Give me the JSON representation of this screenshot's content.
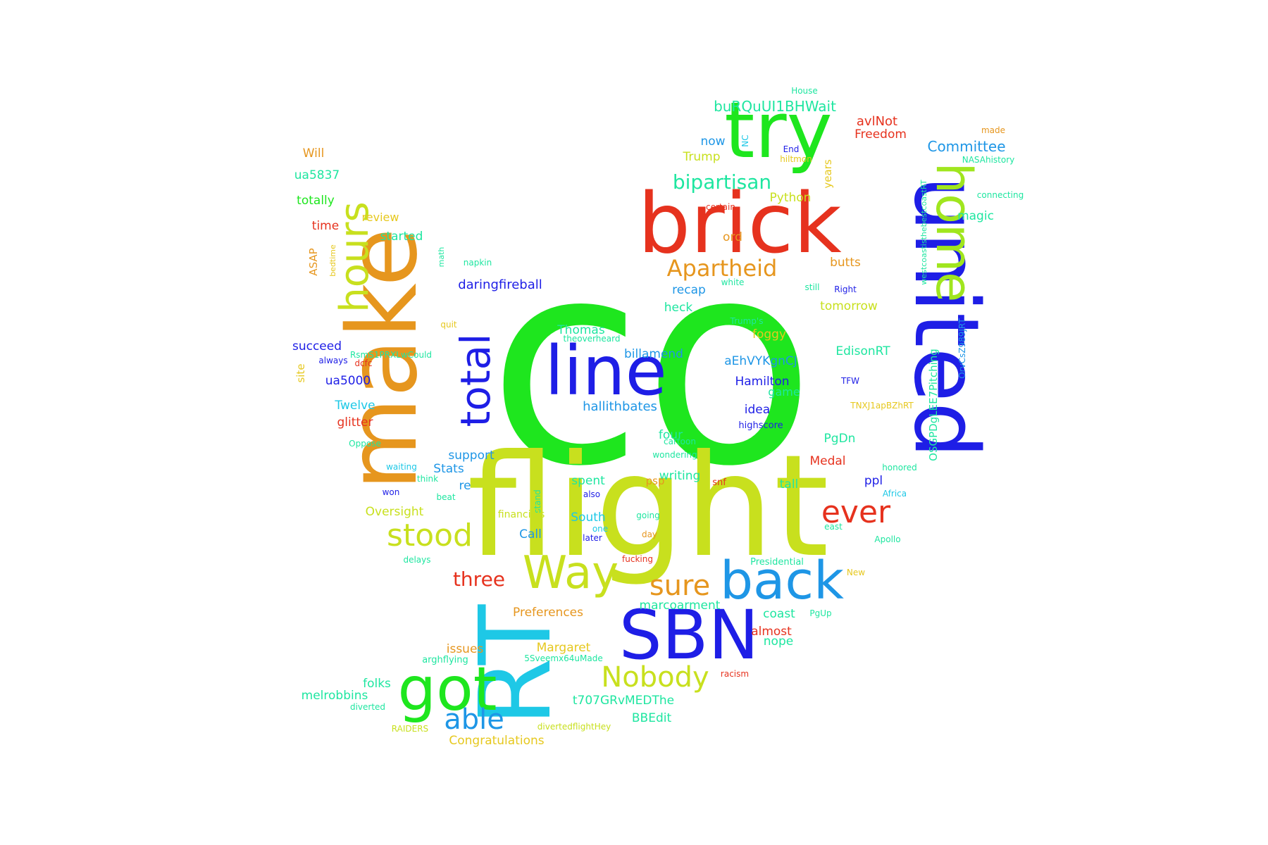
{
  "colors": {
    "green": "#1ee61e",
    "lime": "#c8e01e",
    "blue": "#1e1ee6",
    "red": "#e6321e",
    "orange": "#e6961e",
    "cyan": "#1ec8e6",
    "teal": "#1ee6a0",
    "sky": "#1e96e6",
    "yellowgreen": "#a0e61e",
    "mint": "#1ee678",
    "gold": "#e6c81e"
  },
  "words": [
    {
      "text": "co",
      "color": "#1ee61e"
    },
    {
      "text": "flight",
      "color": "#c8e01e"
    },
    {
      "text": "united",
      "color": "#1e1ee6"
    },
    {
      "text": "make",
      "color": "#e6961e"
    },
    {
      "text": "brick",
      "color": "#e6321e"
    },
    {
      "text": "RT",
      "color": "#1ec8e6"
    },
    {
      "text": "try",
      "color": "#1ee61e"
    },
    {
      "text": "line",
      "color": "#1e1ee6"
    },
    {
      "text": "SBN",
      "color": "#1e1ee6"
    },
    {
      "text": "home",
      "color": "#a0e61e"
    },
    {
      "text": "back",
      "color": "#1e96e6"
    },
    {
      "text": "got",
      "color": "#1ee61e"
    },
    {
      "text": "total",
      "color": "#1e1ee6"
    },
    {
      "text": "hours",
      "color": "#c8e01e"
    },
    {
      "text": "Way",
      "color": "#c8e01e"
    },
    {
      "text": "stood",
      "color": "#c8e01e"
    },
    {
      "text": "ever",
      "color": "#e6321e"
    },
    {
      "text": "sure",
      "color": "#e6961e"
    },
    {
      "text": "Nobody",
      "color": "#c8e01e"
    },
    {
      "text": "able",
      "color": "#1e96e6"
    },
    {
      "text": "Apartheid",
      "color": "#e6961e"
    },
    {
      "text": "bipartisan",
      "color": "#1ee6a0"
    },
    {
      "text": "three",
      "color": "#e6321e"
    },
    {
      "text": "buRQuUI1BHWait",
      "color": "#1ee6a0"
    },
    {
      "text": "avlNot",
      "color": "#e6321e"
    },
    {
      "text": "Freedom",
      "color": "#e6321e"
    },
    {
      "text": "Committee",
      "color": "#1e96e6"
    },
    {
      "text": "now",
      "color": "#1e96e6"
    },
    {
      "text": "Trump",
      "color": "#c8e01e"
    },
    {
      "text": "Python",
      "color": "#c8e01e"
    },
    {
      "text": "magic",
      "color": "#1ee6a0"
    },
    {
      "text": "ord",
      "color": "#e6961e"
    },
    {
      "text": "butts",
      "color": "#e6961e"
    },
    {
      "text": "daringfireball",
      "color": "#1e1ee6"
    },
    {
      "text": "recap",
      "color": "#1e96e6"
    },
    {
      "text": "heck",
      "color": "#1ee6a0"
    },
    {
      "text": "tomorrow",
      "color": "#c8e01e"
    },
    {
      "text": "Thomas",
      "color": "#1ee6a0"
    },
    {
      "text": "foggy",
      "color": "#e6c81e"
    },
    {
      "text": "billamend",
      "color": "#1e96e6"
    },
    {
      "text": "aEhVYKgnCJ",
      "color": "#1e96e6"
    },
    {
      "text": "EdisonRT",
      "color": "#1ee6a0"
    },
    {
      "text": "Hamilton",
      "color": "#1e1ee6"
    },
    {
      "text": "game",
      "color": "#1ee6a0"
    },
    {
      "text": "hallithbates",
      "color": "#1e96e6"
    },
    {
      "text": "idea",
      "color": "#1e1ee6"
    },
    {
      "text": "highscore",
      "color": "#1e1ee6"
    },
    {
      "text": "succeed",
      "color": "#1e1ee6"
    },
    {
      "text": "ua5000",
      "color": "#1e1ee6"
    },
    {
      "text": "Twelve",
      "color": "#1ec8e6"
    },
    {
      "text": "glitter",
      "color": "#e6321e"
    },
    {
      "text": "support",
      "color": "#1e96e6"
    },
    {
      "text": "Stats",
      "color": "#1e96e6"
    },
    {
      "text": "re",
      "color": "#1e96e6"
    },
    {
      "text": "four",
      "color": "#1ee6a0"
    },
    {
      "text": "writing",
      "color": "#1ee6a0"
    },
    {
      "text": "spent",
      "color": "#1ee6a0"
    },
    {
      "text": "PgDn",
      "color": "#1ee6a0"
    },
    {
      "text": "Medal",
      "color": "#e6321e"
    },
    {
      "text": "ppl",
      "color": "#1e1ee6"
    },
    {
      "text": "tall",
      "color": "#1ee6a0"
    },
    {
      "text": "Oversight",
      "color": "#c8e01e"
    },
    {
      "text": "South",
      "color": "#1ec8e6"
    },
    {
      "text": "Call",
      "color": "#1e96e6"
    },
    {
      "text": "Preferences",
      "color": "#e6961e"
    },
    {
      "text": "marcoarment",
      "color": "#1ee6a0"
    },
    {
      "text": "coast",
      "color": "#1ee6a0"
    },
    {
      "text": "almost",
      "color": "#e6321e"
    },
    {
      "text": "nope",
      "color": "#1ee6a0"
    },
    {
      "text": "Margaret",
      "color": "#e6c81e"
    },
    {
      "text": "issues",
      "color": "#e6961e"
    },
    {
      "text": "folks",
      "color": "#1ee6a0"
    },
    {
      "text": "melrobbins",
      "color": "#1ee6a0"
    },
    {
      "text": "t707GRvMEDThe",
      "color": "#1ee6a0"
    },
    {
      "text": "BBEdit",
      "color": "#1ee6a0"
    },
    {
      "text": "Congratulations",
      "color": "#e6c81e"
    },
    {
      "text": "Will",
      "color": "#e6961e"
    },
    {
      "text": "ua5837",
      "color": "#1ee6a0"
    },
    {
      "text": "totally",
      "color": "#1ee61e"
    },
    {
      "text": "time",
      "color": "#e6321e"
    },
    {
      "text": "review",
      "color": "#e6c81e"
    },
    {
      "text": "started",
      "color": "#1ee6a0"
    },
    {
      "text": "ASAP",
      "color": "#e6961e"
    },
    {
      "text": "bedtime",
      "color": "#e6c81e"
    },
    {
      "text": "math",
      "color": "#1ee6a0"
    },
    {
      "text": "napkin",
      "color": "#1ee6a0"
    },
    {
      "text": "quit",
      "color": "#e6c81e"
    },
    {
      "text": "RsmS1PRXLwCould",
      "color": "#1ee6a0"
    },
    {
      "text": "always",
      "color": "#1e1ee6"
    },
    {
      "text": "dcfc",
      "color": "#e6321e"
    },
    {
      "text": "site",
      "color": "#e6c81e"
    },
    {
      "text": "theoverheard",
      "color": "#1ee6a0"
    },
    {
      "text": "House",
      "color": "#1ee6a0"
    },
    {
      "text": "made",
      "color": "#e6961e"
    },
    {
      "text": "NC",
      "color": "#1ec8e6"
    },
    {
      "text": "End",
      "color": "#1e1ee6"
    },
    {
      "text": "hiltmon",
      "color": "#e6c81e"
    },
    {
      "text": "years",
      "color": "#e6c81e"
    },
    {
      "text": "westcoastisthebestcoastRT",
      "color": "#1ee6a0"
    },
    {
      "text": "NASAhistory",
      "color": "#1ee6a0"
    },
    {
      "text": "connecting",
      "color": "#1ee6a0"
    },
    {
      "text": "certain",
      "color": "#e6321e"
    },
    {
      "text": "white",
      "color": "#1ee6a0"
    },
    {
      "text": "still",
      "color": "#1ee6a0"
    },
    {
      "text": "Right",
      "color": "#1e1ee6"
    },
    {
      "text": "OSGPDgLEE7Pitching",
      "color": "#1ee6a0"
    },
    {
      "text": "OrvCsZ989JRT",
      "color": "#1e96e6"
    },
    {
      "text": "TFW",
      "color": "#1e1ee6"
    },
    {
      "text": "TNXJ1apBZhRT",
      "color": "#e6c81e"
    },
    {
      "text": "Oppose",
      "color": "#1ee6a0"
    },
    {
      "text": "cartoon",
      "color": "#1ee6a0"
    },
    {
      "text": "wondering",
      "color": "#1ee6a0"
    },
    {
      "text": "waiting",
      "color": "#1ec8e6"
    },
    {
      "text": "think",
      "color": "#1ee6a0"
    },
    {
      "text": "honored",
      "color": "#1ee6a0"
    },
    {
      "text": "won",
      "color": "#1e1ee6"
    },
    {
      "text": "beat",
      "color": "#1ee6a0"
    },
    {
      "text": "stand",
      "color": "#1ee6a0"
    },
    {
      "text": "also",
      "color": "#1e1ee6"
    },
    {
      "text": "snf",
      "color": "#e6321e"
    },
    {
      "text": "psp",
      "color": "#e6961e"
    },
    {
      "text": "Africa",
      "color": "#1ec8e6"
    },
    {
      "text": "financials",
      "color": "#c8e01e"
    },
    {
      "text": "going",
      "color": "#1ee6a0"
    },
    {
      "text": "one",
      "color": "#1ec8e6"
    },
    {
      "text": "later",
      "color": "#1e1ee6"
    },
    {
      "text": "day",
      "color": "#e6961e"
    },
    {
      "text": "east",
      "color": "#1ee6a0"
    },
    {
      "text": "Apollo",
      "color": "#1ee6a0"
    },
    {
      "text": "delays",
      "color": "#1ee6a0"
    },
    {
      "text": "fucking",
      "color": "#e6321e"
    },
    {
      "text": "Presidential",
      "color": "#1ee6a0"
    },
    {
      "text": "New",
      "color": "#e6c81e"
    },
    {
      "text": "PgUp",
      "color": "#1ee6a0"
    },
    {
      "text": "5Sveemx64uMade",
      "color": "#1ee6a0"
    },
    {
      "text": "arghflying",
      "color": "#1ee6a0"
    },
    {
      "text": "racism",
      "color": "#e6321e"
    },
    {
      "text": "diverted",
      "color": "#1ee6a0"
    },
    {
      "text": "RAIDERS",
      "color": "#c8e01e"
    },
    {
      "text": "divertedflightHey",
      "color": "#c8e01e"
    },
    {
      "text": "Trump's",
      "color": "#1ee6a0"
    }
  ]
}
